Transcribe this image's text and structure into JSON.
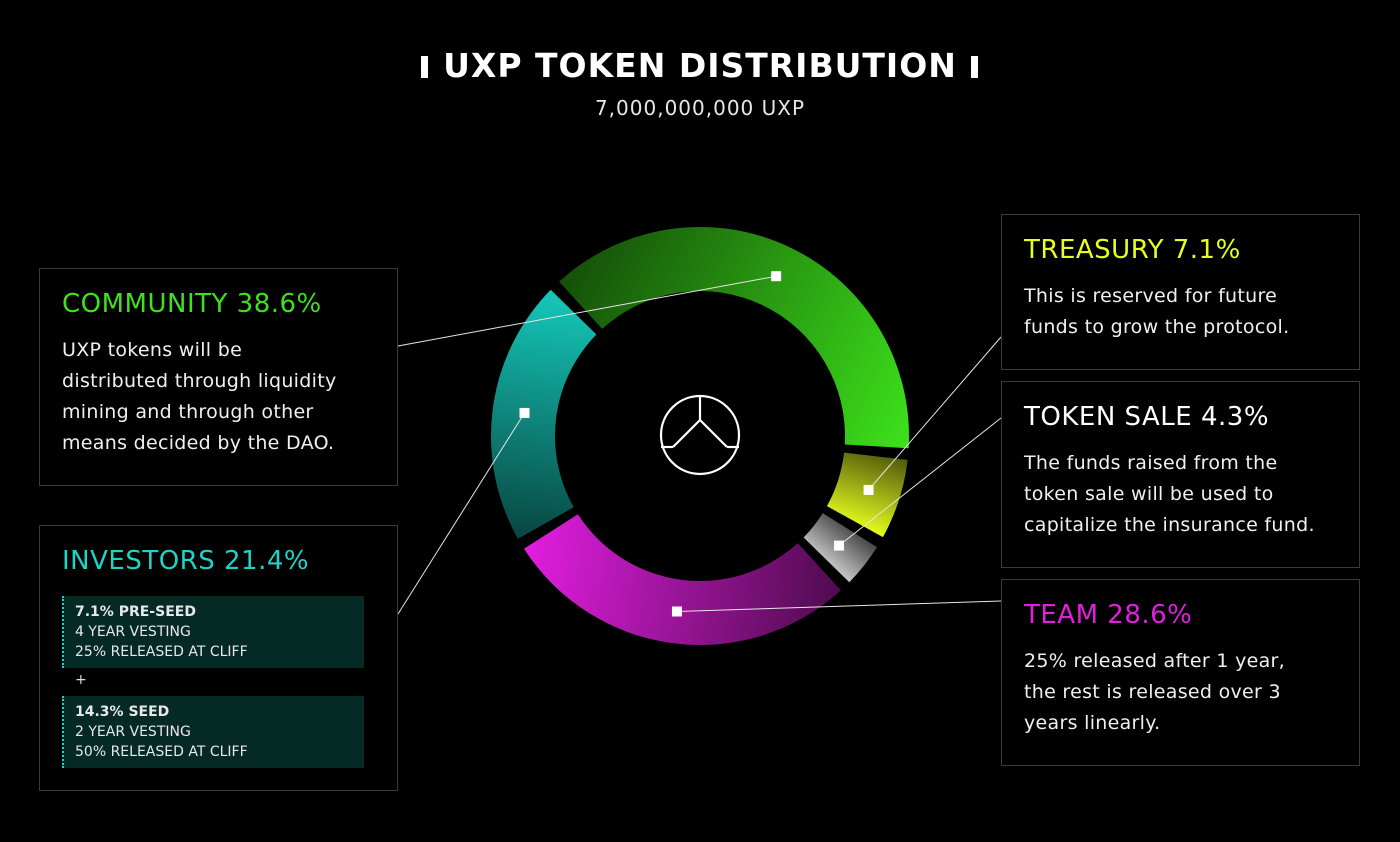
{
  "header": {
    "title": "UXP TOKEN DISTRIBUTION",
    "subtitle": "7,000,000,000 UXP"
  },
  "chart_data": {
    "type": "pie",
    "style": "donut",
    "title": "UXP TOKEN DISTRIBUTION",
    "subtitle": "7,000,000,000 UXP",
    "series": [
      {
        "name": "COMMUNITY",
        "value": 38.6,
        "color": "#3de21b"
      },
      {
        "name": "TREASURY",
        "value": 7.1,
        "color": "#e6ff1e"
      },
      {
        "name": "TOKEN SALE",
        "value": 4.3,
        "color": "#c8c8c8"
      },
      {
        "name": "TEAM",
        "value": 28.6,
        "color": "#e21ee0"
      },
      {
        "name": "INVESTORS",
        "value": 21.4,
        "color": "#16c9bb"
      }
    ]
  },
  "legend": {
    "community": {
      "title": "COMMUNITY 38.6%",
      "color": "#3de21b",
      "lines": [
        "UXP tokens will be",
        "distributed through liquidity",
        "mining and through other",
        "means decided by the DAO."
      ]
    },
    "treasury": {
      "title": "TREASURY 7.1%",
      "color": "#e6ff1e",
      "lines": [
        "This is reserved for future",
        "funds to grow the protocol."
      ]
    },
    "token_sale": {
      "title": "TOKEN SALE 4.3%",
      "color": "#ffffff",
      "lines": [
        "The funds raised from the",
        "token sale will be used to",
        "capitalize the insurance fund."
      ]
    },
    "team": {
      "title": "TEAM 28.6%",
      "color": "#e21ee0",
      "lines": [
        "25% released after 1 year,",
        "the rest is released over 3",
        "years linearly."
      ]
    },
    "investors": {
      "title": "INVESTORS 21.4%",
      "color": "#1fd3c6",
      "pre_seed": {
        "head": "7.1% PRE-SEED",
        "vesting": "4 YEAR VESTING",
        "release": "25% RELEASED AT CLIFF"
      },
      "plus": "+",
      "seed": {
        "head": "14.3% SEED",
        "vesting": "2 YEAR VESTING",
        "release": "50% RELEASED AT CLIFF"
      }
    }
  },
  "center_icon": "uxp-logo-icon"
}
